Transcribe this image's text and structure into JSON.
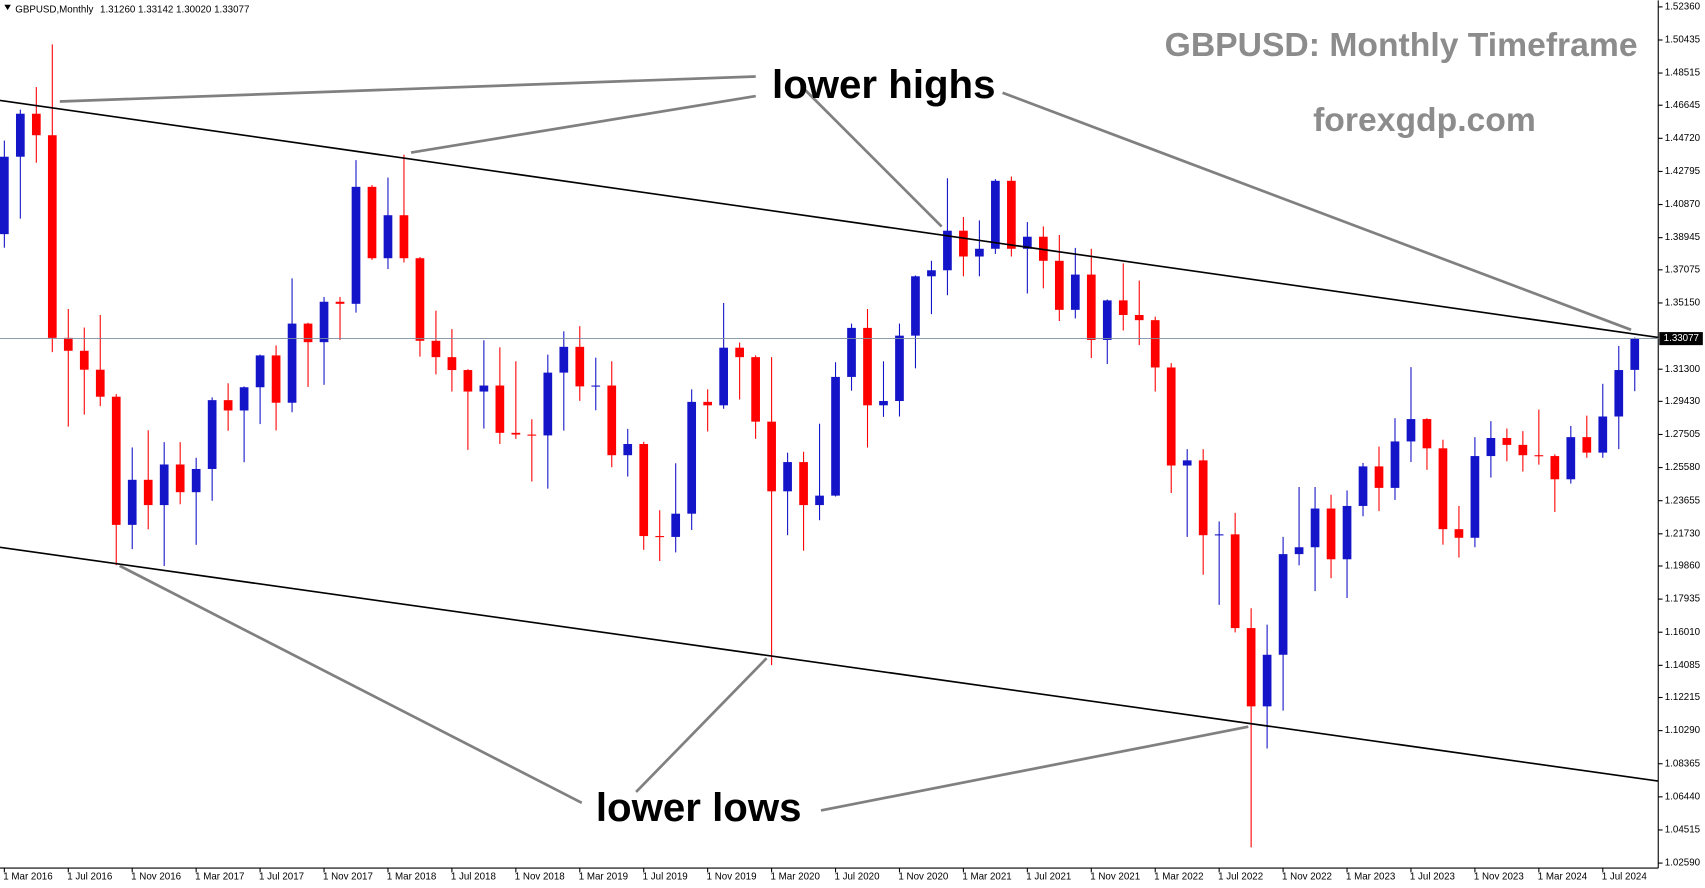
{
  "chart_data": {
    "type": "candlestick",
    "symbol": "GBPUSD,Monthly",
    "ohlc_text": "1.31260 1.33142 1.30020 1.33077",
    "title": "GBPUSD: Monthly Timeframe",
    "subtitle": "forexgdp.com",
    "annotations": [
      "lower highs",
      "lower lows"
    ],
    "up_color": "#1414c8",
    "down_color": "#ff0000",
    "categories": [
      "1 Mar 2016",
      null,
      null,
      null,
      "1 Jul 2016",
      null,
      null,
      null,
      "1 Nov 2016",
      null,
      null,
      null,
      "1 Mar 2017",
      null,
      null,
      null,
      "1 Jul 2017",
      null,
      null,
      null,
      "1 Nov 2017",
      null,
      null,
      null,
      "1 Mar 2018",
      null,
      null,
      null,
      "1 Jul 2018",
      null,
      null,
      null,
      "1 Nov 2018",
      null,
      null,
      null,
      "1 Mar 2019",
      null,
      null,
      null,
      "1 Jul 2019",
      null,
      null,
      null,
      "1 Nov 2019",
      null,
      null,
      null,
      "1 Mar 2020",
      null,
      null,
      null,
      "1 Jul 2020",
      null,
      null,
      null,
      "1 Nov 2020",
      null,
      null,
      null,
      "1 Mar 2021",
      null,
      null,
      null,
      "1 Jul 2021",
      null,
      null,
      null,
      "1 Nov 2021",
      null,
      null,
      null,
      "1 Mar 2022",
      null,
      null,
      null,
      "1 Jul 2022",
      null,
      null,
      null,
      "1 Nov 2022",
      null,
      null,
      null,
      "1 Mar 2023",
      null,
      null,
      null,
      "1 Jul 2023",
      null,
      null,
      null,
      "1 Nov 2023",
      null,
      null,
      null,
      "1 Mar 2024",
      null,
      null,
      null,
      "1 Jul 2024",
      null,
      null
    ],
    "open": [
      1.3915,
      1.4365,
      1.4615,
      1.449,
      1.3312,
      1.3237,
      1.3127,
      1.297,
      1.2225,
      1.2487,
      1.234,
      1.2576,
      1.2415,
      1.255,
      1.295,
      1.289,
      1.3025,
      1.321,
      1.2935,
      1.3395,
      1.3287,
      1.3522,
      1.351,
      1.419,
      1.3775,
      1.4025,
      1.3775,
      1.3295,
      1.32,
      1.3125,
      1.3,
      1.3035,
      1.276,
      1.275,
      1.2745,
      1.311,
      1.326,
      1.303,
      1.3035,
      1.263,
      1.2695,
      1.216,
      1.2155,
      1.229,
      1.294,
      1.292,
      1.3255,
      1.32,
      1.2825,
      1.242,
      1.259,
      1.234,
      1.2395,
      1.3085,
      1.337,
      1.292,
      1.2945,
      1.3325,
      1.367,
      1.3705,
      1.3935,
      1.3785,
      1.383,
      1.4225,
      1.383,
      1.39,
      1.376,
      1.3475,
      1.368,
      1.33,
      1.353,
      1.3445,
      1.3415,
      1.314,
      1.257,
      1.26,
      1.2165,
      1.217,
      1.1625,
      1.117,
      1.147,
      1.2055,
      1.2095,
      1.232,
      1.2025,
      1.2335,
      1.2565,
      1.244,
      1.271,
      1.284,
      1.267,
      1.22,
      1.215,
      1.2625,
      1.273,
      1.269,
      1.263,
      1.2625,
      1.249,
      1.2735,
      1.2645,
      1.2855,
      1.3126
    ],
    "high": [
      1.4459,
      1.4639,
      1.477,
      1.5018,
      1.348,
      1.3372,
      1.3445,
      1.2985,
      1.2675,
      1.2775,
      1.2706,
      1.2706,
      1.2615,
      1.2966,
      1.3048,
      1.303,
      1.3215,
      1.3268,
      1.3658,
      1.34,
      1.355,
      1.355,
      1.4345,
      1.42,
      1.4244,
      1.4377,
      1.3782,
      1.347,
      1.3363,
      1.313,
      1.3298,
      1.3257,
      1.3176,
      1.2839,
      1.3215,
      1.335,
      1.338,
      1.3197,
      1.3176,
      1.2783,
      1.2708,
      1.231,
      1.2583,
      1.3013,
      1.3013,
      1.3515,
      1.3285,
      1.321,
      1.32,
      1.2645,
      1.265,
      1.2813,
      1.317,
      1.3395,
      1.348,
      1.3176,
      1.3395,
      1.3675,
      1.376,
      1.424,
      1.4015,
      1.3995,
      1.4235,
      1.425,
      1.3985,
      1.396,
      1.391,
      1.3835,
      1.383,
      1.3535,
      1.3745,
      1.3645,
      1.3435,
      1.3165,
      1.2665,
      1.2665,
      1.2245,
      1.2295,
      1.174,
      1.1645,
      1.2155,
      1.2445,
      1.2445,
      1.24,
      1.2425,
      1.2585,
      1.268,
      1.2845,
      1.3142,
      1.2845,
      1.272,
      1.2335,
      1.2735,
      1.2828,
      1.2785,
      1.277,
      1.2895,
      1.2635,
      1.28,
      1.286,
      1.3045,
      1.3265,
      1.33142
    ],
    "low": [
      1.3836,
      1.4005,
      1.433,
      1.3229,
      1.2796,
      1.2866,
      1.2915,
      1.199,
      1.2084,
      1.2199,
      1.1986,
      1.2345,
      1.2109,
      1.2365,
      1.2772,
      1.2589,
      1.2811,
      1.2774,
      1.288,
      1.3027,
      1.3039,
      1.33,
      1.3459,
      1.3765,
      1.3712,
      1.375,
      1.3203,
      1.31,
      1.3,
      1.2661,
      1.2785,
      1.2695,
      1.2725,
      1.2477,
      1.2436,
      1.2773,
      1.2946,
      1.2891,
      1.256,
      1.2506,
      1.208,
      1.2015,
      1.2065,
      1.2195,
      1.2768,
      1.29,
      1.2954,
      1.2725,
      1.141,
      1.2165,
      1.2075,
      1.2252,
      1.239,
      1.3005,
      1.2675,
      1.2853,
      1.2855,
      1.3135,
      1.345,
      1.356,
      1.367,
      1.367,
      1.38,
      1.3785,
      1.357,
      1.36,
      1.341,
      1.3425,
      1.3195,
      1.316,
      1.3355,
      1.327,
      1.3,
      1.241,
      1.2155,
      1.1935,
      1.176,
      1.16,
      1.035,
      1.0925,
      1.1145,
      1.199,
      1.184,
      1.1915,
      1.18,
      1.2275,
      1.2305,
      1.237,
      1.259,
      1.2545,
      1.211,
      1.2035,
      1.2095,
      1.25,
      1.2595,
      1.2535,
      1.2575,
      1.23,
      1.2465,
      1.2615,
      1.2615,
      1.2665,
      1.3002
    ],
    "close": [
      1.4365,
      1.4615,
      1.449,
      1.3312,
      1.3237,
      1.3127,
      1.297,
      1.2225,
      1.2487,
      1.234,
      1.2576,
      1.2415,
      1.255,
      1.295,
      1.289,
      1.3025,
      1.321,
      1.2935,
      1.3395,
      1.3287,
      1.3522,
      1.351,
      1.419,
      1.3775,
      1.4025,
      1.3775,
      1.3295,
      1.32,
      1.3125,
      1.3,
      1.3035,
      1.276,
      1.275,
      1.2745,
      1.311,
      1.326,
      1.303,
      1.3035,
      1.263,
      1.2695,
      1.216,
      1.2155,
      1.229,
      1.294,
      1.292,
      1.3255,
      1.32,
      1.2825,
      1.242,
      1.259,
      1.234,
      1.2395,
      1.3085,
      1.337,
      1.292,
      1.2945,
      1.3325,
      1.367,
      1.3705,
      1.3935,
      1.3785,
      1.383,
      1.4225,
      1.383,
      1.39,
      1.376,
      1.3475,
      1.368,
      1.33,
      1.353,
      1.3445,
      1.3415,
      1.314,
      1.257,
      1.26,
      1.2165,
      1.217,
      1.1625,
      1.117,
      1.147,
      1.2055,
      1.2095,
      1.232,
      1.2025,
      1.2335,
      1.2565,
      1.244,
      1.271,
      1.284,
      1.267,
      1.22,
      1.215,
      1.2625,
      1.273,
      1.269,
      1.263,
      1.2625,
      1.249,
      1.2735,
      1.2645,
      1.2855,
      1.3125,
      1.33077
    ],
    "current_price": 1.33077,
    "ylim": [
      1.023,
      1.5274
    ],
    "yticks": [
      {
        "value": 1.5236,
        "label": "1.52360"
      },
      1.50435,
      1.48515,
      1.46645,
      {
        "value": 1.4472,
        "label": "1.44720"
      },
      1.42795,
      {
        "value": 1.4087,
        "label": "1.40870"
      },
      1.38945,
      1.37075,
      {
        "value": 1.3515,
        "label": "1.35150"
      },
      {
        "value": 1.313,
        "label": "1.31300"
      },
      {
        "value": 1.2943,
        "label": "1.29430"
      },
      1.27505,
      {
        "value": 1.2558,
        "label": "1.25580"
      },
      1.23655,
      {
        "value": 1.2173,
        "label": "1.21730"
      },
      {
        "value": 1.1986,
        "label": "1.19860"
      },
      1.17935,
      {
        "value": 1.1601,
        "label": "1.16010"
      },
      1.14085,
      1.12215,
      {
        "value": 1.1029,
        "label": "1.10290"
      },
      1.08365,
      {
        "value": 1.0644,
        "label": "1.06440"
      },
      1.04515,
      {
        "value": 1.0259,
        "label": "1.02590"
      }
    ]
  }
}
